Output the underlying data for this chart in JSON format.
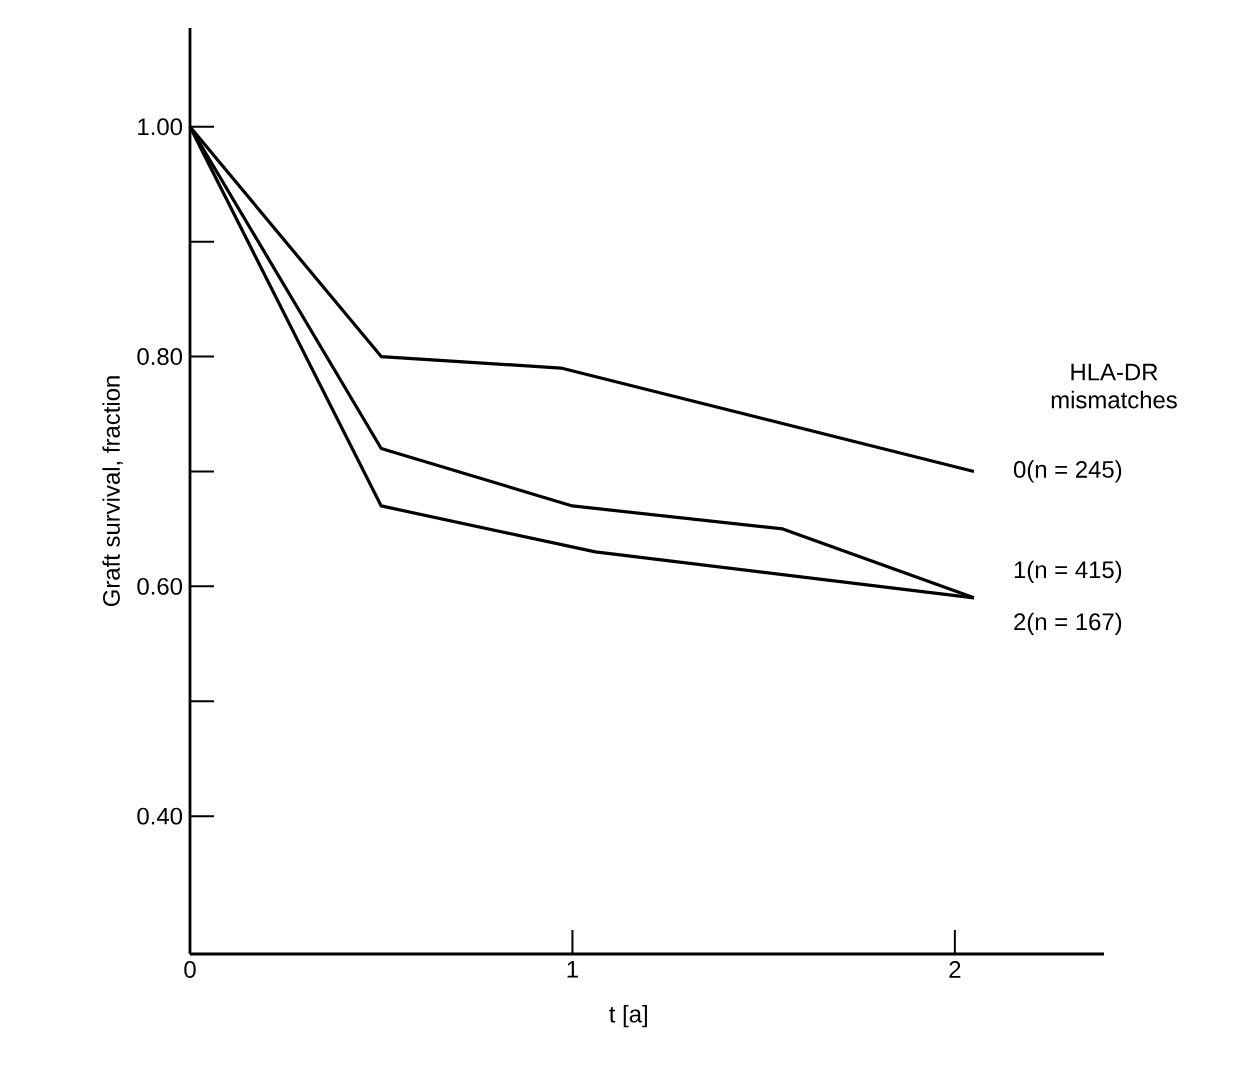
{
  "chart_data": {
    "type": "line",
    "xlabel": "t [a]",
    "ylabel": "Graft survival, fraction",
    "legend_title": "HLA-DR mismatches",
    "xlim": [
      0,
      2.39
    ],
    "ylim": [
      0.28,
      1.086
    ],
    "xticks": [
      0,
      1,
      2
    ],
    "yticks": [
      {
        "value": 0.4,
        "label": "0.40"
      },
      {
        "value": 0.5,
        "label": null
      },
      {
        "value": 0.6,
        "label": "0.60"
      },
      {
        "value": 0.7,
        "label": null
      },
      {
        "value": 0.8,
        "label": "0.80"
      },
      {
        "value": 0.9,
        "label": null
      },
      {
        "value": 1.0,
        "label": "1.00"
      }
    ],
    "grid": false,
    "marker": "none",
    "line_style": "solid",
    "series": [
      {
        "name": "0(n = 245)",
        "color": "#000000",
        "x": [
          0,
          0.5,
          0.97,
          2.05
        ],
        "values": [
          1.0,
          0.8,
          0.79,
          0.7
        ]
      },
      {
        "name": "1(n = 415)",
        "color": "#000000",
        "x": [
          0,
          0.5,
          1.0,
          1.55,
          2.05
        ],
        "values": [
          1.0,
          0.72,
          0.67,
          0.65,
          0.59
        ]
      },
      {
        "name": "2(n = 167)",
        "color": "#000000",
        "x": [
          0,
          0.5,
          1.06,
          2.05
        ],
        "values": [
          1.0,
          0.67,
          0.63,
          0.59
        ]
      }
    ]
  }
}
